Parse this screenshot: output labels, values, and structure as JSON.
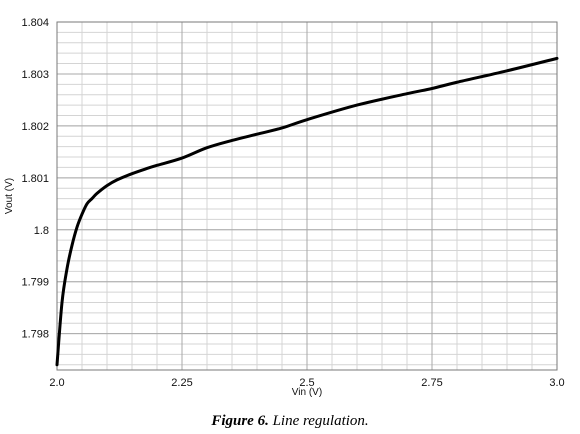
{
  "chart_data": {
    "type": "line",
    "xlabel": "Vin (V)",
    "ylabel": "Vout (V)",
    "xlim": [
      2.0,
      3.0
    ],
    "ylim": [
      1.7973,
      1.804
    ],
    "x_ticks": [
      2.0,
      2.25,
      2.5,
      2.75,
      3.0
    ],
    "x_tick_labels": [
      "2.0",
      "2.25",
      "2.5",
      "2.75",
      "3.0"
    ],
    "y_ticks": [
      1.798,
      1.799,
      1.8,
      1.801,
      1.802,
      1.803,
      1.804
    ],
    "y_tick_labels": [
      "1.798",
      "1.799",
      "1.8",
      "1.801",
      "1.802",
      "1.803",
      "1.804"
    ],
    "grid": true,
    "series": [
      {
        "color": "#000000",
        "x": [
          2.0,
          2.01,
          2.02,
          2.03,
          2.04,
          2.05,
          2.06,
          2.07,
          2.08,
          2.1,
          2.12,
          2.15,
          2.18,
          2.2,
          2.25,
          2.3,
          2.35,
          2.4,
          2.45,
          2.5,
          2.6,
          2.7,
          2.75,
          2.8,
          2.9,
          3.0
        ],
        "y": [
          1.7974,
          1.7986,
          1.79925,
          1.7997,
          1.80005,
          1.8003,
          1.8005,
          1.8006,
          1.8007,
          1.80085,
          1.80096,
          1.80108,
          1.80118,
          1.80124,
          1.80138,
          1.80158,
          1.80172,
          1.80184,
          1.80196,
          1.80212,
          1.8024,
          1.80262,
          1.80272,
          1.80284,
          1.80306,
          1.8033
        ]
      }
    ]
  },
  "caption": {
    "number": "Figure 6.",
    "text": "Line regulation."
  }
}
